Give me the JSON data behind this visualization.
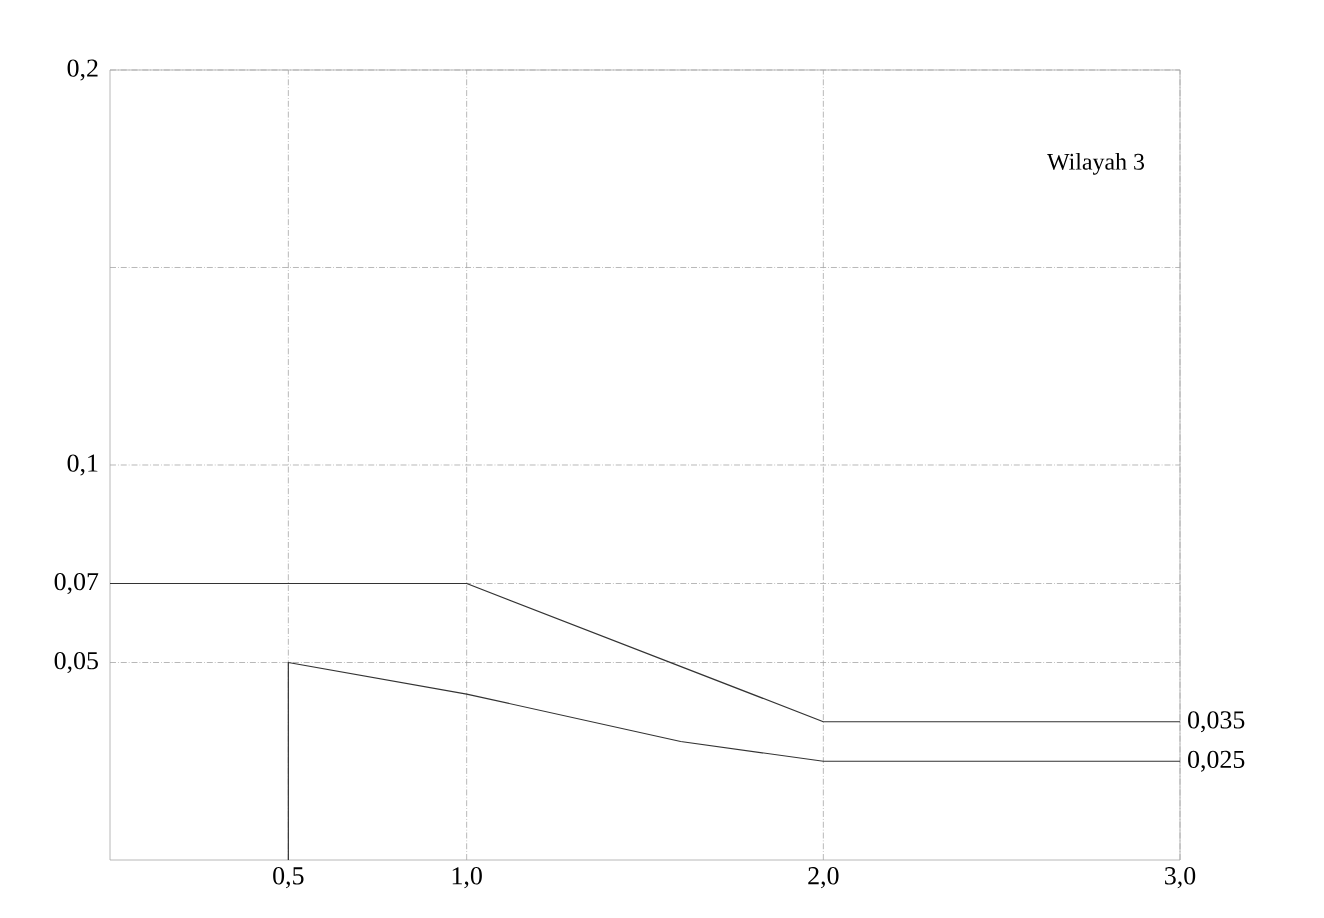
{
  "chart_data": {
    "type": "line",
    "annotations": [
      "Wilayah 3",
      {
        "text": "0,035",
        "x": 3.0,
        "y": 0.035
      },
      {
        "text": "0,025",
        "x": 3.0,
        "y": 0.025
      }
    ],
    "series": [
      {
        "color": "#333333",
        "x": [
          0,
          1.0,
          2.0,
          3.0
        ],
        "values": [
          0.07,
          0.07,
          0.035,
          0.035
        ]
      },
      {
        "color": "#333333",
        "x": [
          0.5,
          0.5,
          1.0,
          1.6,
          2.0,
          3.0
        ],
        "values": [
          0,
          0.05,
          0.042,
          0.03,
          0.025,
          0.025
        ]
      }
    ],
    "xlim": [
      0,
      3.0
    ],
    "ylim": [
      0,
      0.2
    ],
    "xticks": [
      {
        "value": 0.5,
        "label": "0,5"
      },
      {
        "value": 1.0,
        "label": "1,0"
      },
      {
        "value": 2.0,
        "label": "2,0"
      },
      {
        "value": 3.0,
        "label": "3,0"
      }
    ],
    "yticks": [
      {
        "value": 0.05,
        "label": "0,05"
      },
      {
        "value": 0.07,
        "label": "0,07"
      },
      {
        "value": 0.1,
        "label": "0,1"
      },
      {
        "value": 0.15,
        "label": null
      },
      {
        "value": 0.2,
        "label": "0,2"
      }
    ],
    "grid": true,
    "marker": "none",
    "line_style": "solid"
  }
}
